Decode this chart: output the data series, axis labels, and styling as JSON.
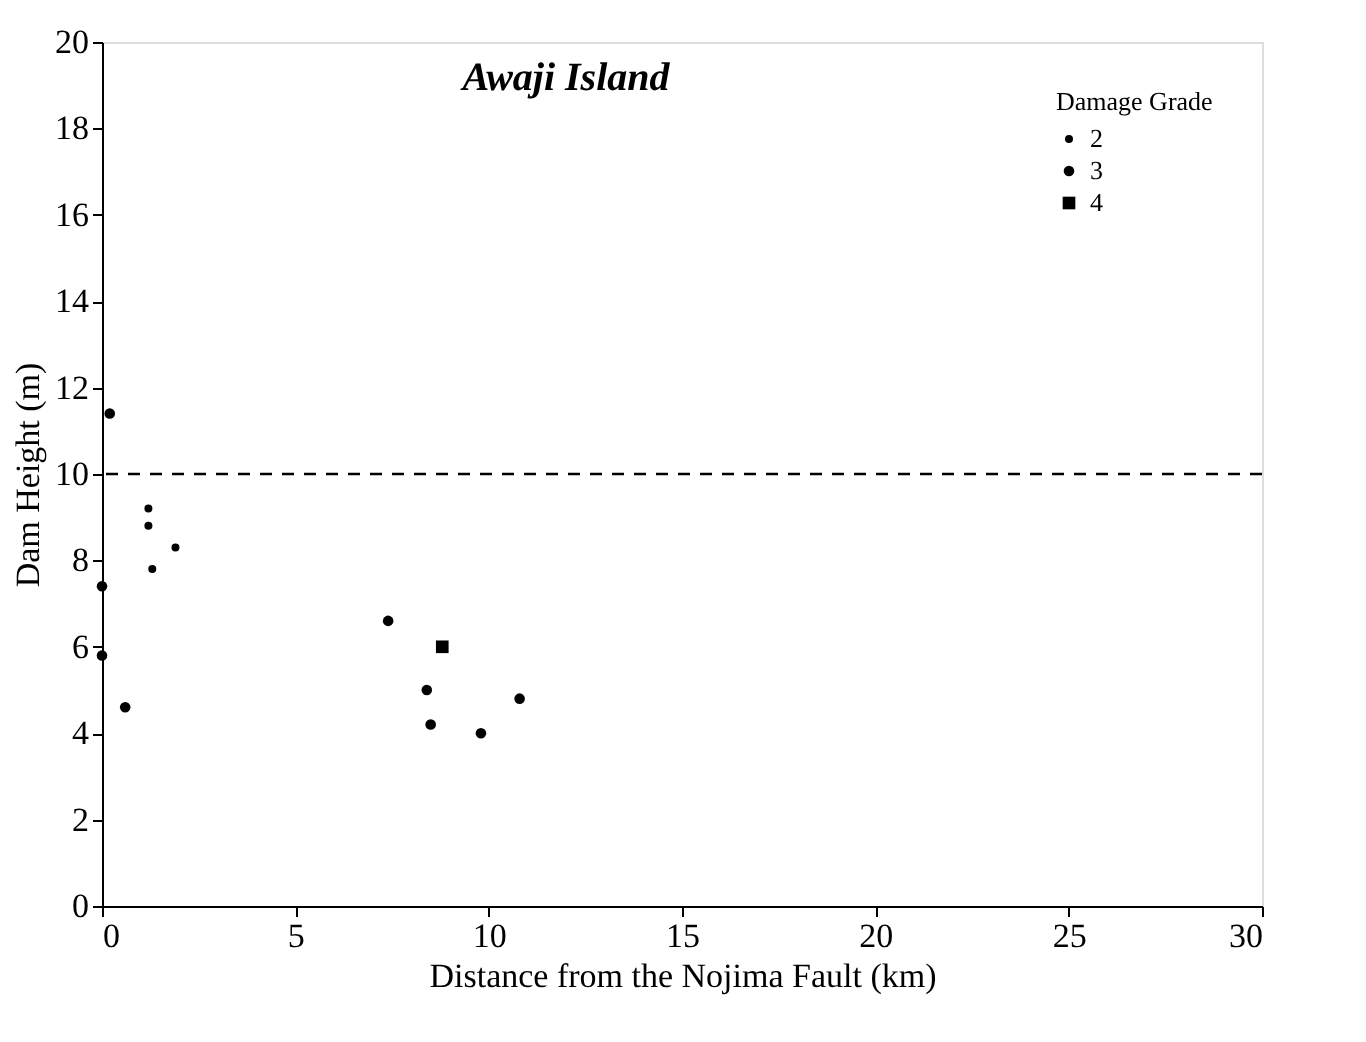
{
  "chart_data": {
    "type": "scatter",
    "title": "Awaji Island",
    "xlabel": "Distance from the Nojima Fault (km)",
    "ylabel": "Dam Height (m)",
    "legend_title": "Damage Grade",
    "legend": "top right",
    "grid": false,
    "xlim": [
      0,
      30
    ],
    "xticks": [
      0,
      5,
      10,
      15,
      20,
      25,
      30
    ],
    "ylim": [
      0,
      20
    ],
    "yticks": [
      0,
      2,
      4,
      6,
      8,
      10,
      12,
      14,
      16,
      18,
      20
    ],
    "ref_lines": [
      {
        "axis": "y",
        "value": 10,
        "line_style": "dashed",
        "color": "#000000"
      }
    ],
    "series": [
      {
        "name": "2",
        "color": "#000000",
        "marker": "circle",
        "x": [
          1.2,
          1.2,
          1.9,
          1.3
        ],
        "values": [
          9.2,
          8.8,
          8.3,
          7.8
        ]
      },
      {
        "name": "3",
        "color": "#000000",
        "marker": "circle",
        "x": [
          0.2,
          0,
          0,
          0.6,
          7.4,
          8.4,
          8.5,
          9.8,
          10.8
        ],
        "values": [
          11.4,
          7.4,
          5.8,
          4.6,
          6.6,
          5.0,
          4.2,
          4.0,
          4.8
        ]
      },
      {
        "name": "4",
        "color": "#000000",
        "marker": "square",
        "x": [
          8.8
        ],
        "values": [
          6.0
        ]
      }
    ]
  }
}
